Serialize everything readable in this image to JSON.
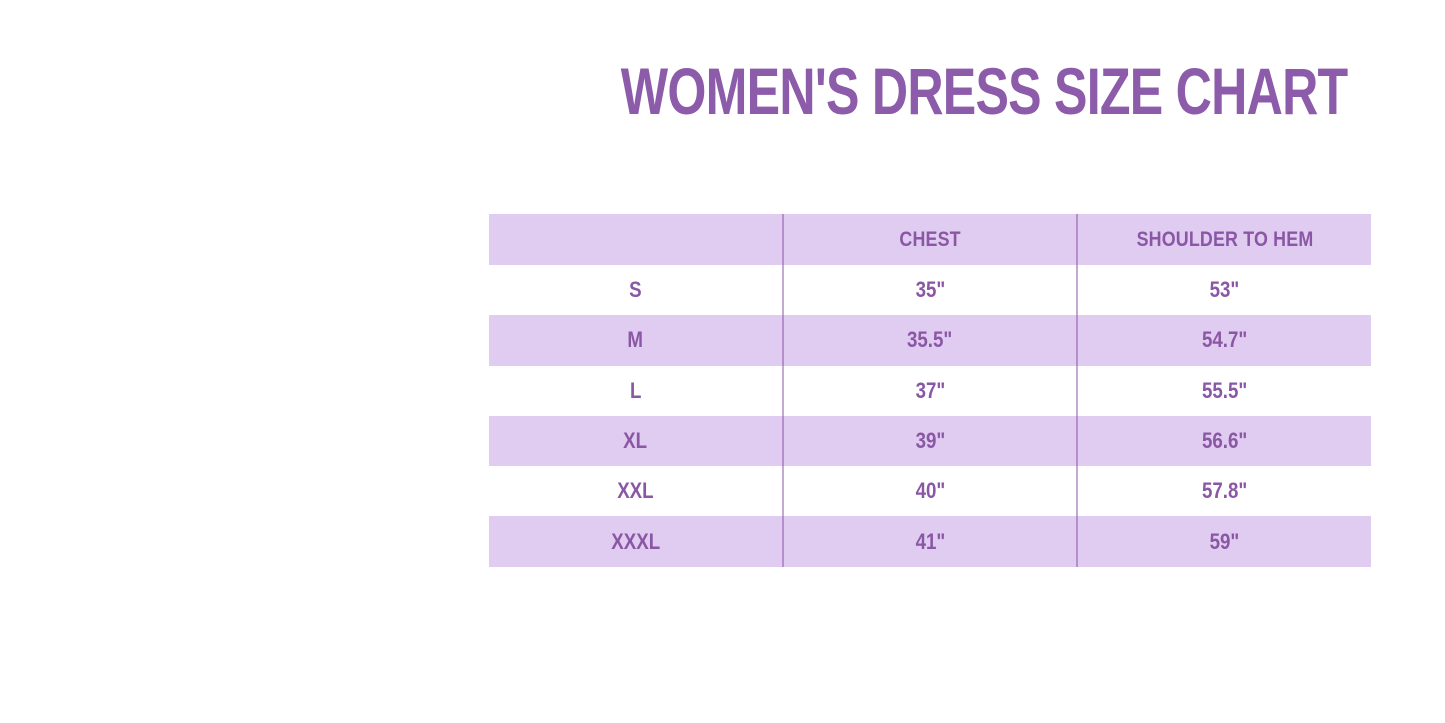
{
  "title": "WOMEN'S DRESS SIZE CHART",
  "colors": {
    "accent": "#8a57a5",
    "title_text": "#8c5ba9",
    "row_alt_background": "#e0cbf1",
    "page_background": "#ffffff"
  },
  "chart_data": {
    "type": "table",
    "title": "WOMEN'S DRESS SIZE CHART",
    "columns": [
      "",
      "CHEST",
      "SHOULDER TO HEM"
    ],
    "rows": [
      [
        "S",
        "35\"",
        "53\""
      ],
      [
        "M",
        "35.5\"",
        "54.7\""
      ],
      [
        "L",
        "37\"",
        "55.5\""
      ],
      [
        "XL",
        "39\"",
        "56.6\""
      ],
      [
        "XXL",
        "40\"",
        "57.8\""
      ],
      [
        "XXXL",
        "41\"",
        "59\""
      ]
    ],
    "layout": {
      "striped": true,
      "stripe_color": "#e0cbf1",
      "column_dividers": true,
      "row_order": [
        "header-lavender",
        "white",
        "lavender",
        "white",
        "lavender",
        "white",
        "lavender"
      ]
    }
  }
}
